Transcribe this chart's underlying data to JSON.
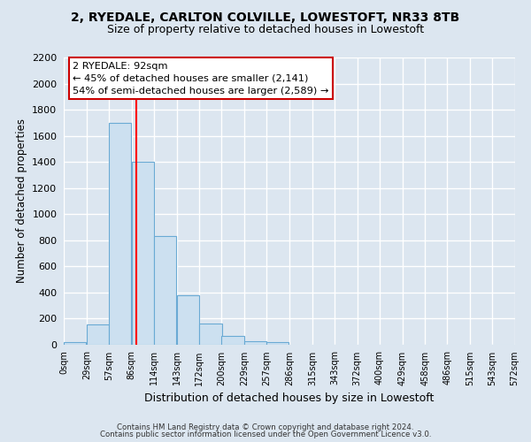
{
  "title_line1": "2, RYEDALE, CARLTON COLVILLE, LOWESTOFT, NR33 8TB",
  "title_line2": "Size of property relative to detached houses in Lowestoft",
  "xlabel": "Distribution of detached houses by size in Lowestoft",
  "ylabel": "Number of detached properties",
  "bar_left_edges": [
    0,
    29,
    57,
    86,
    114,
    143,
    172,
    200,
    229,
    257,
    286,
    315,
    343,
    372,
    400,
    429,
    458,
    486,
    515,
    543
  ],
  "bar_heights": [
    20,
    155,
    1700,
    1400,
    830,
    380,
    160,
    65,
    30,
    20,
    0,
    0,
    0,
    0,
    0,
    0,
    0,
    0,
    0,
    0
  ],
  "bar_width": 28.5,
  "bar_color": "#cce0f0",
  "bar_edge_color": "#6aaad4",
  "bin_labels": [
    "0sqm",
    "29sqm",
    "57sqm",
    "86sqm",
    "114sqm",
    "143sqm",
    "172sqm",
    "200sqm",
    "229sqm",
    "257sqm",
    "286sqm",
    "315sqm",
    "343sqm",
    "372sqm",
    "400sqm",
    "429sqm",
    "458sqm",
    "486sqm",
    "515sqm",
    "543sqm",
    "572sqm"
  ],
  "vline_x": 92,
  "vline_color": "red",
  "ylim": [
    0,
    2200
  ],
  "yticks": [
    0,
    200,
    400,
    600,
    800,
    1000,
    1200,
    1400,
    1600,
    1800,
    2000,
    2200
  ],
  "annotation_title": "2 RYEDALE: 92sqm",
  "annotation_line1": "← 45% of detached houses are smaller (2,141)",
  "annotation_line2": "54% of semi-detached houses are larger (2,589) →",
  "annotation_box_color": "white",
  "annotation_box_edge": "#cc0000",
  "footer_line1": "Contains HM Land Registry data © Crown copyright and database right 2024.",
  "footer_line2": "Contains public sector information licensed under the Open Government Licence v3.0.",
  "background_color": "#dce6f0",
  "plot_bg_color": "#dce6f0",
  "grid_color": "white",
  "title_fontsize": 10,
  "subtitle_fontsize": 9
}
